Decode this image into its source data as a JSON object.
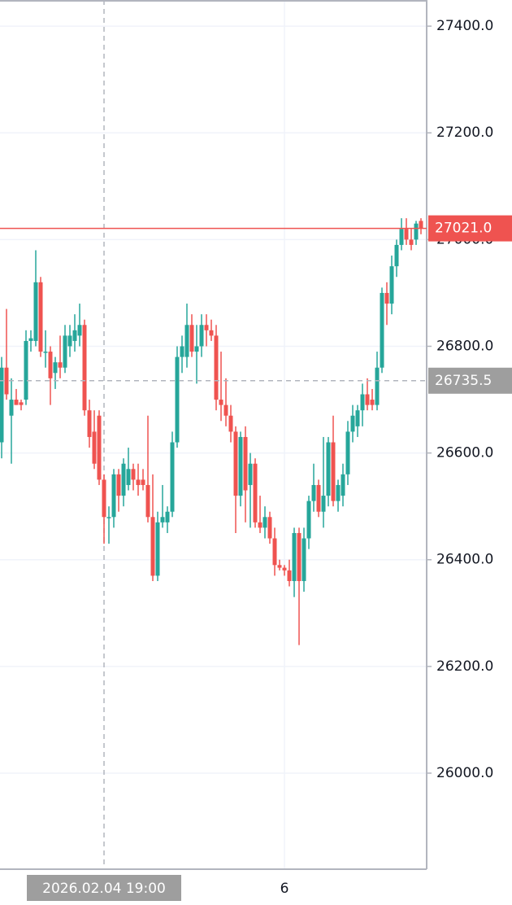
{
  "chart_data": {
    "type": "candlestick",
    "categories": [
      null,
      null,
      null,
      null,
      null,
      null,
      null,
      null,
      null,
      null,
      null,
      null,
      null,
      null,
      null,
      null,
      null,
      null,
      null,
      null,
      null,
      "2026.02.04 19:00",
      null,
      null,
      null,
      null,
      null,
      null,
      null,
      null,
      null,
      null,
      null,
      null,
      null,
      null,
      null,
      null,
      null,
      null,
      null,
      null,
      null,
      null,
      null,
      null,
      null,
      null,
      null,
      null,
      null,
      null,
      null,
      null,
      null,
      null,
      null,
      null,
      "6",
      null,
      null,
      null,
      null,
      null,
      null,
      null,
      null,
      null,
      null,
      null,
      null,
      null,
      null,
      null,
      null,
      null,
      null,
      null,
      null,
      null,
      null,
      null,
      null,
      null,
      null,
      null,
      null
    ],
    "open": [
      26620,
      26760,
      26670,
      26700,
      26695,
      26700,
      26810,
      26810,
      26920,
      26790,
      26790,
      26750,
      26770,
      26760,
      26800,
      26810,
      26820,
      26840,
      26680,
      26640,
      26670,
      26550,
      26480,
      26480,
      26560,
      26520,
      26540,
      26570,
      26550,
      26550,
      26540,
      26480,
      26370,
      26470,
      26470,
      26490,
      26620,
      26780,
      26780,
      26840,
      26790,
      26800,
      26840,
      26830,
      26820,
      26700,
      26690,
      26670,
      26640,
      26520,
      26630,
      26540,
      26580,
      26470,
      26460,
      26480,
      26440,
      26390,
      26385,
      26380,
      26360,
      26450,
      26360,
      26440,
      26510,
      26540,
      26490,
      26520,
      26620,
      26510,
      26520,
      26560,
      26640,
      26650,
      26680,
      26710,
      26700,
      26690,
      26760,
      26900,
      26880,
      26950,
      26990,
      27020,
      27000,
      27000,
      27035
    ],
    "high": [
      26780,
      26870,
      26740,
      26720,
      26700,
      26830,
      26830,
      26980,
      26930,
      26830,
      26800,
      26780,
      26820,
      26840,
      26840,
      26860,
      26880,
      26850,
      26700,
      26680,
      26680,
      26560,
      26500,
      26570,
      26570,
      26590,
      26610,
      26580,
      26580,
      26570,
      26670,
      26560,
      26490,
      26540,
      26500,
      26640,
      26800,
      26820,
      26880,
      26860,
      26840,
      26860,
      26860,
      26850,
      26840,
      26790,
      26740,
      26690,
      26650,
      26640,
      26650,
      26600,
      26590,
      26520,
      26500,
      26490,
      26460,
      26400,
      26390,
      26400,
      26460,
      26460,
      26460,
      26520,
      26580,
      26550,
      26630,
      26630,
      26670,
      26550,
      26580,
      26660,
      26690,
      26690,
      26730,
      26740,
      26720,
      26790,
      26910,
      26920,
      26970,
      27000,
      27040,
      27040,
      27020,
      27035,
      27040
    ],
    "low": [
      26590,
      26700,
      26580,
      26690,
      26680,
      26690,
      26790,
      26800,
      26780,
      26760,
      26690,
      26720,
      26740,
      26750,
      26780,
      26790,
      26800,
      26670,
      26610,
      26570,
      26540,
      26430,
      26430,
      26460,
      26490,
      26500,
      26530,
      26530,
      26520,
      26530,
      26470,
      26360,
      26360,
      26460,
      26450,
      26480,
      26610,
      26750,
      26760,
      26780,
      26730,
      26780,
      26800,
      26810,
      26680,
      26660,
      26650,
      26620,
      26450,
      26500,
      26470,
      26460,
      26460,
      26450,
      26440,
      26430,
      26370,
      26380,
      26370,
      26350,
      26330,
      26240,
      26340,
      26420,
      26490,
      26480,
      26460,
      26500,
      26500,
      26490,
      26500,
      26540,
      26620,
      26630,
      26650,
      26680,
      26680,
      26680,
      26750,
      26840,
      26860,
      26930,
      26980,
      26990,
      26980,
      26990,
      27010
    ],
    "close": [
      26760,
      26710,
      26700,
      26690,
      26690,
      26810,
      26815,
      26920,
      26790,
      26790,
      26740,
      26770,
      26760,
      26820,
      26820,
      26830,
      26840,
      26680,
      26630,
      26580,
      26550,
      26480,
      26480,
      26560,
      26520,
      26580,
      26570,
      26550,
      26540,
      26540,
      26480,
      26370,
      26470,
      26480,
      26490,
      26620,
      26780,
      26800,
      26840,
      26790,
      26800,
      26840,
      26830,
      26820,
      26700,
      26690,
      26670,
      26640,
      26520,
      26630,
      26530,
      26580,
      26470,
      26460,
      26480,
      26440,
      26390,
      26385,
      26380,
      26360,
      26450,
      26360,
      26440,
      26510,
      26540,
      26490,
      26520,
      26620,
      26510,
      26540,
      26560,
      26640,
      26670,
      26680,
      26710,
      26690,
      26690,
      26760,
      26900,
      26880,
      26950,
      26990,
      27020,
      27000,
      26990,
      27030,
      27021
    ],
    "up_color": "#26a69a",
    "down_color": "#ef5350",
    "ylim": [
      25820,
      27449
    ],
    "yticks": [
      {
        "value": 26000,
        "label": "26000.0"
      },
      {
        "value": 26200,
        "label": "26200.0"
      },
      {
        "value": 26400,
        "label": "26400.0"
      },
      {
        "value": 26600,
        "label": "26600.0"
      },
      {
        "value": 26800,
        "label": "26800.0"
      },
      {
        "value": 27000,
        "label": "27000.0"
      },
      {
        "value": 27200,
        "label": "27200.0"
      },
      {
        "value": 27400,
        "label": "27400.0"
      }
    ],
    "grid": true,
    "last_price": {
      "value": 27021,
      "label": "27021.0"
    },
    "crosshair_price": {
      "value": 26735.5,
      "label": "26735.5"
    }
  }
}
